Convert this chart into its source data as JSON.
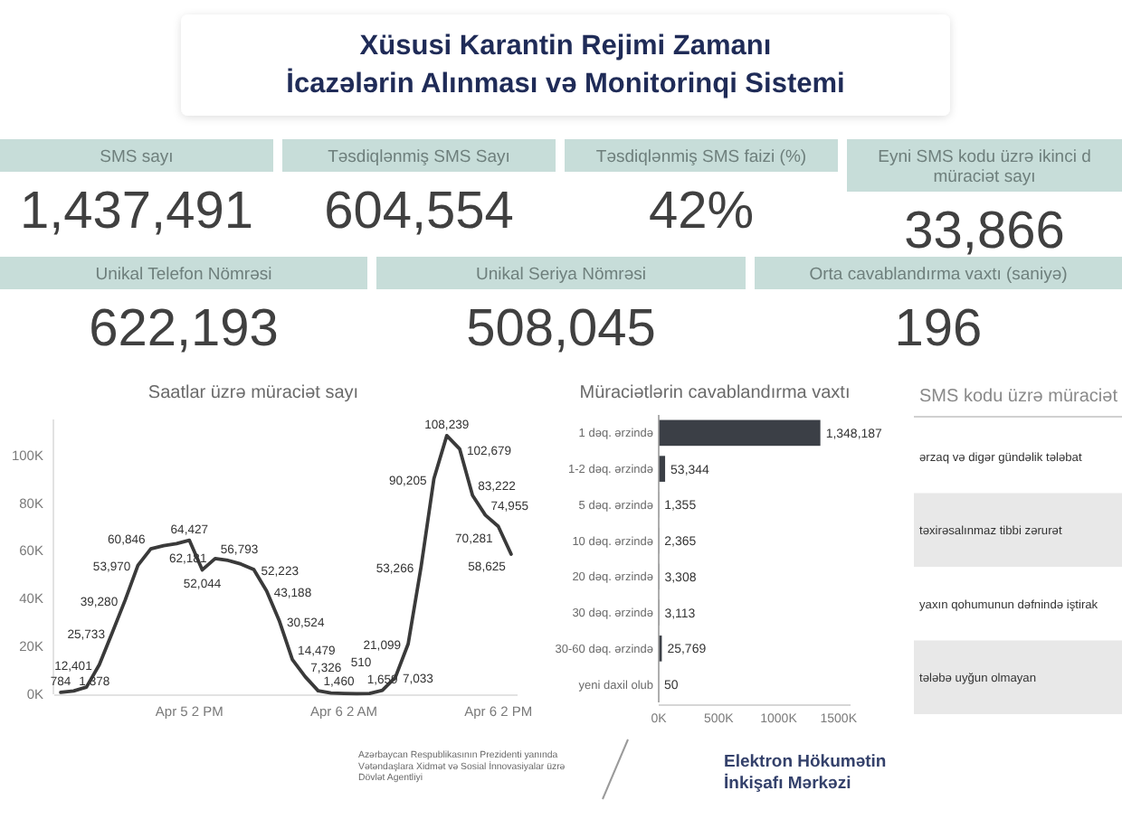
{
  "chart_data": [
    {
      "type": "other",
      "title": "Xüsusi Karantin Rejimi Zamanı\nİcazələrin Alınması və Monitorinqi Sistemi"
    },
    {
      "type": "other",
      "title": "SMS sayı",
      "annotations": [
        "1,437,491"
      ]
    },
    {
      "type": "other",
      "title": "Təsdiqlənmiş SMS Sayı",
      "annotations": [
        "604,554"
      ]
    },
    {
      "type": "other",
      "title": "Təsdiqlənmiş SMS faizi (%)",
      "annotations": [
        "42%"
      ]
    },
    {
      "type": "other",
      "title": "Eyni SMS kodu üzrə ikinci d müraciət sayı",
      "annotations": [
        "33,866"
      ]
    },
    {
      "type": "other",
      "title": "Unikal Telefon Nömrəsi",
      "annotations": [
        "622,193"
      ]
    },
    {
      "type": "other",
      "title": "Unikal Seriya Nömrəsi",
      "annotations": [
        "508,045"
      ]
    },
    {
      "type": "other",
      "title": "Orta cavablandırma vaxtı (saniyə)",
      "annotations": [
        "196"
      ]
    },
    {
      "type": "line",
      "title": "Saatlar üzrə müraciət sayı",
      "categories": [
        null,
        null,
        null,
        null,
        null,
        null,
        null,
        null,
        null,
        null,
        "Apr 5 2 PM",
        null,
        null,
        null,
        null,
        null,
        null,
        null,
        null,
        null,
        null,
        null,
        "Apr 6 2 AM",
        null,
        null,
        null,
        null,
        null,
        null,
        null,
        null,
        null,
        null,
        null,
        "Apr 6 2 PM",
        null
      ],
      "values": [
        784,
        1378,
        3000,
        12401,
        25733,
        39280,
        53970,
        60846,
        62181,
        63000,
        64427,
        52044,
        56793,
        56000,
        54500,
        52223,
        43188,
        30524,
        14479,
        7326,
        1460,
        510,
        300,
        200,
        300,
        1659,
        7033,
        21099,
        53266,
        90205,
        108239,
        102679,
        83222,
        74955,
        70281,
        58625
      ],
      "value_labels": [
        "784",
        "1,378",
        null,
        "12,401",
        "25,733",
        "39,280",
        "53,970",
        "60,846",
        "62,181",
        null,
        "64,427",
        "52,044",
        "56,793",
        null,
        null,
        "52,223",
        "43,188",
        "30,524",
        "14,479",
        "7,326",
        "1,460",
        "510",
        null,
        null,
        null,
        "1,659",
        "7,033",
        "21,099",
        "53,266",
        "90,205",
        "108,239",
        "102,679",
        "83,222",
        "74,955",
        "70,281",
        "58,625"
      ],
      "color": "#3a3a3a",
      "ylim": [
        0,
        115000
      ],
      "yticks": [
        {
          "value": 0,
          "label": "0K"
        },
        {
          "value": 20000,
          "label": "20K"
        },
        {
          "value": 40000,
          "label": "40K"
        },
        {
          "value": 60000,
          "label": "60K"
        },
        {
          "value": 80000,
          "label": "80K"
        },
        {
          "value": 100000,
          "label": "100K"
        }
      ]
    },
    {
      "type": "bar",
      "orientation": "horizontal",
      "title": "Müraciətlərin cavablandırma vaxtı",
      "categories": [
        "1 dəq. ərzində",
        "1-2 dəq. ərzində",
        "5 dəq. ərzində",
        "10 dəq. ərzində",
        "20 dəq. ərzində",
        "30 dəq. ərzində",
        "30-60 dəq. ərzində",
        "yeni daxil olub"
      ],
      "values": [
        1348187,
        53344,
        1355,
        2365,
        3308,
        3113,
        25769,
        50
      ],
      "value_labels": [
        "1,348,187",
        "53,344",
        "1,355",
        "2,365",
        "3,308",
        "3,113",
        "25,769",
        "50"
      ],
      "color": "#3b3f46",
      "xlim": [
        0,
        1600000
      ],
      "xticks": [
        {
          "value": 0,
          "label": "0K"
        },
        {
          "value": 500000,
          "label": "500K"
        },
        {
          "value": 1000000,
          "label": "1000K"
        },
        {
          "value": 1500000,
          "label": "1500K"
        }
      ]
    },
    {
      "type": "other",
      "title": "SMS kodu üzrə müraciət",
      "categories": [
        "ərzaq və digər gündəlik tələbat",
        "təxirəsalınmaz tibbi zərurət",
        "yaxın qohumunun dəfnində iştirak",
        "tələbə uyğun olmayan"
      ]
    },
    {
      "type": "other",
      "annotations": [
        "Azərbaycan Respublikasının Prezidenti yanında Vətəndaşlara Xidmət və Sosial İnnovasiyalar üzrə Dövlət Agentliyi",
        "Elektron Hökumətin İnkişafı Mərkəzi"
      ]
    }
  ]
}
